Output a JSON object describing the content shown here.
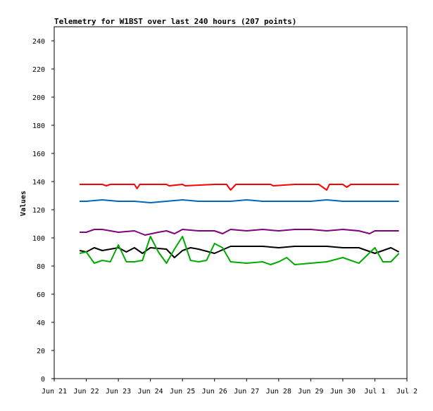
{
  "chart_data": {
    "type": "line",
    "title": "Telemetry for W1BST over last 240 hours (207 points)",
    "xlabel": "",
    "ylabel": "Values",
    "ylim": [
      0,
      250
    ],
    "yticks": [
      0,
      20,
      40,
      60,
      80,
      100,
      120,
      140,
      160,
      180,
      200,
      220,
      240
    ],
    "xlim": [
      "2025-06-21",
      "2025-07-02"
    ],
    "xtick_labels": [
      "Jun 21",
      "Jun 22",
      "Jun 23",
      "Jun 24",
      "Jun 25",
      "Jun 26",
      "Jun 27",
      "Jun 28",
      "Jun 29",
      "Jun 30",
      "Jul 1",
      "Jul 2"
    ],
    "grid": false,
    "series": [
      {
        "color": "#ff0000",
        "x": [
          "2025-06-21 19:00",
          "2025-06-22 00:00",
          "2025-06-22 12:00",
          "2025-06-22 15:00",
          "2025-06-22 18:00",
          "2025-06-23 12:00",
          "2025-06-23 14:00",
          "2025-06-23 16:00",
          "2025-06-24 00:00",
          "2025-06-24 12:00",
          "2025-06-24 14:00",
          "2025-06-25 00:00",
          "2025-06-25 02:00",
          "2025-06-26 00:00",
          "2025-06-26 09:00",
          "2025-06-26 12:00",
          "2025-06-26 16:00",
          "2025-06-27 00:00",
          "2025-06-27 18:00",
          "2025-06-27 20:00",
          "2025-06-28 12:00",
          "2025-06-29 06:00",
          "2025-06-29 12:00",
          "2025-06-29 14:00",
          "2025-06-29 18:00",
          "2025-06-30 00:00",
          "2025-06-30 03:00",
          "2025-06-30 06:00",
          "2025-07-01 00:00",
          "2025-07-01 18:00"
        ],
        "y": [
          138,
          138,
          138,
          137,
          138,
          138,
          135,
          138,
          138,
          138,
          137,
          138,
          137,
          138,
          138,
          134,
          138,
          138,
          138,
          137,
          138,
          138,
          134,
          138,
          138,
          138,
          136,
          138,
          138,
          138
        ]
      },
      {
        "color": "#0066bb",
        "x": [
          "2025-06-21 19:00",
          "2025-06-22 00:00",
          "2025-06-22 12:00",
          "2025-06-23 00:00",
          "2025-06-23 12:00",
          "2025-06-24 00:00",
          "2025-06-24 12:00",
          "2025-06-25 00:00",
          "2025-06-25 12:00",
          "2025-06-26 00:00",
          "2025-06-26 12:00",
          "2025-06-27 00:00",
          "2025-06-27 12:00",
          "2025-06-28 00:00",
          "2025-06-28 12:00",
          "2025-06-29 00:00",
          "2025-06-29 12:00",
          "2025-06-30 00:00",
          "2025-06-30 12:00",
          "2025-07-01 00:00",
          "2025-07-01 12:00",
          "2025-07-01 18:00"
        ],
        "y": [
          126,
          126,
          127,
          126,
          126,
          125,
          126,
          127,
          126,
          126,
          126,
          127,
          126,
          126,
          126,
          126,
          127,
          126,
          126,
          126,
          126,
          126
        ]
      },
      {
        "color": "#800080",
        "x": [
          "2025-06-21 19:00",
          "2025-06-22 00:00",
          "2025-06-22 06:00",
          "2025-06-22 12:00",
          "2025-06-23 00:00",
          "2025-06-23 12:00",
          "2025-06-23 20:00",
          "2025-06-24 06:00",
          "2025-06-24 12:00",
          "2025-06-24 18:00",
          "2025-06-25 00:00",
          "2025-06-25 12:00",
          "2025-06-26 00:00",
          "2025-06-26 06:00",
          "2025-06-26 12:00",
          "2025-06-27 00:00",
          "2025-06-27 12:00",
          "2025-06-28 00:00",
          "2025-06-28 12:00",
          "2025-06-29 00:00",
          "2025-06-29 12:00",
          "2025-06-30 00:00",
          "2025-06-30 12:00",
          "2025-06-30 20:00",
          "2025-07-01 00:00",
          "2025-07-01 12:00",
          "2025-07-01 18:00"
        ],
        "y": [
          104,
          104,
          106,
          106,
          104,
          105,
          102,
          104,
          105,
          103,
          106,
          105,
          105,
          103,
          106,
          105,
          106,
          105,
          106,
          106,
          105,
          106,
          105,
          103,
          105,
          105,
          105
        ]
      },
      {
        "color": "#000000",
        "x": [
          "2025-06-21 19:00",
          "2025-06-22 00:00",
          "2025-06-22 06:00",
          "2025-06-22 12:00",
          "2025-06-23 00:00",
          "2025-06-23 06:00",
          "2025-06-23 12:00",
          "2025-06-23 18:00",
          "2025-06-24 00:00",
          "2025-06-24 12:00",
          "2025-06-24 18:00",
          "2025-06-25 00:00",
          "2025-06-25 06:00",
          "2025-06-25 12:00",
          "2025-06-26 00:00",
          "2025-06-26 12:00",
          "2025-06-27 00:00",
          "2025-06-27 12:00",
          "2025-06-28 00:00",
          "2025-06-28 12:00",
          "2025-06-29 00:00",
          "2025-06-29 12:00",
          "2025-06-30 00:00",
          "2025-06-30 12:00",
          "2025-07-01 00:00",
          "2025-07-01 12:00",
          "2025-07-01 18:00"
        ],
        "y": [
          91,
          90,
          93,
          91,
          93,
          90,
          93,
          89,
          93,
          92,
          86,
          91,
          93,
          92,
          89,
          94,
          94,
          94,
          93,
          94,
          94,
          94,
          93,
          93,
          89,
          93,
          90
        ]
      },
      {
        "color": "#00aa00",
        "x": [
          "2025-06-21 19:00",
          "2025-06-22 00:00",
          "2025-06-22 06:00",
          "2025-06-22 12:00",
          "2025-06-22 18:00",
          "2025-06-23 00:00",
          "2025-06-23 06:00",
          "2025-06-23 12:00",
          "2025-06-23 18:00",
          "2025-06-24 00:00",
          "2025-06-24 06:00",
          "2025-06-24 12:00",
          "2025-06-24 18:00",
          "2025-06-25 00:00",
          "2025-06-25 06:00",
          "2025-06-25 12:00",
          "2025-06-25 18:00",
          "2025-06-26 00:00",
          "2025-06-26 06:00",
          "2025-06-26 12:00",
          "2025-06-27 00:00",
          "2025-06-27 12:00",
          "2025-06-27 18:00",
          "2025-06-28 00:00",
          "2025-06-28 06:00",
          "2025-06-28 12:00",
          "2025-06-29 00:00",
          "2025-06-29 12:00",
          "2025-06-30 00:00",
          "2025-06-30 12:00",
          "2025-07-01 00:00",
          "2025-07-01 06:00",
          "2025-07-01 12:00",
          "2025-07-01 18:00"
        ],
        "y": [
          89,
          90,
          82,
          84,
          83,
          95,
          83,
          83,
          84,
          101,
          90,
          82,
          92,
          101,
          84,
          83,
          84,
          96,
          93,
          83,
          82,
          83,
          81,
          83,
          86,
          81,
          82,
          83,
          86,
          82,
          93,
          83,
          83,
          89
        ]
      }
    ]
  }
}
